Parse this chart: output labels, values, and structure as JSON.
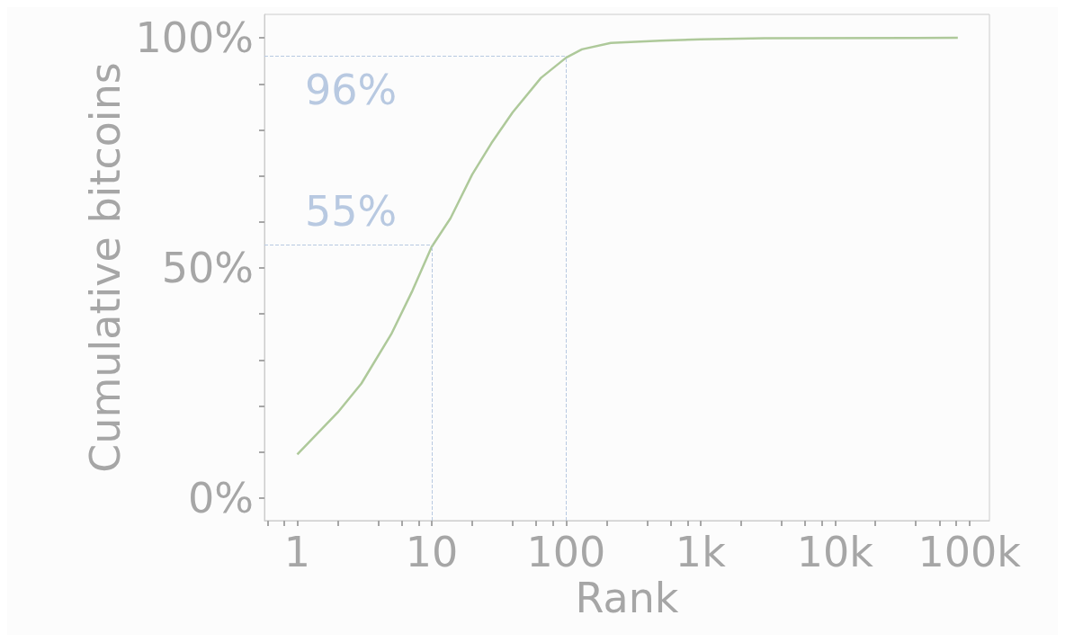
{
  "chart_data": {
    "type": "line",
    "xlabel": "Rank",
    "ylabel": "Cumulative bitcoins",
    "log": "x",
    "x": [
      1,
      2,
      3,
      5,
      7.2,
      10,
      13.8,
      20,
      27.8,
      40,
      65,
      100,
      131,
      215,
      500,
      1000,
      3000,
      82000
    ],
    "series": [
      {
        "color": "#aec99a",
        "values": [
          9.5,
          18.6,
          24.9,
          35.6,
          45.1,
          54.6,
          60.8,
          70.3,
          77.1,
          83.8,
          91.3,
          95.7,
          97.5,
          98.9,
          99.4,
          99.7,
          99.9,
          100
        ]
      }
    ],
    "xlim": [
      0.57,
      141000
    ],
    "xticks": [
      {
        "value": 0.6,
        "label": null
      },
      {
        "value": 0.8,
        "label": null
      },
      1,
      {
        "value": 2,
        "label": null
      },
      {
        "value": 4,
        "label": null
      },
      {
        "value": 6,
        "label": null
      },
      {
        "value": 8,
        "label": null
      },
      10,
      {
        "value": 20,
        "label": null
      },
      {
        "value": 40,
        "label": null
      },
      {
        "value": 60,
        "label": null
      },
      {
        "value": 80,
        "label": null
      },
      100,
      {
        "value": 200,
        "label": null
      },
      {
        "value": 400,
        "label": null
      },
      {
        "value": 600,
        "label": null
      },
      {
        "value": 800,
        "label": null
      },
      {
        "value": 1000,
        "label": "1k"
      },
      {
        "value": 2000,
        "label": null
      },
      {
        "value": 4000,
        "label": null
      },
      {
        "value": 6000,
        "label": null
      },
      {
        "value": 8000,
        "label": null
      },
      {
        "value": 10000,
        "label": "10k"
      },
      {
        "value": 20000,
        "label": null
      },
      {
        "value": 40000,
        "label": null
      },
      {
        "value": 60000,
        "label": null
      },
      {
        "value": 80000,
        "label": null
      },
      {
        "value": 100000,
        "label": "100k"
      }
    ],
    "ylim": [
      -4.9,
      105.1
    ],
    "yticks": [
      {
        "value": 0,
        "label": "0%"
      },
      {
        "value": 10,
        "label": null
      },
      {
        "value": 20,
        "label": null
      },
      {
        "value": 30,
        "label": null
      },
      {
        "value": 40,
        "label": null
      },
      {
        "value": 50,
        "label": "50%"
      },
      {
        "value": 60,
        "label": null
      },
      {
        "value": 70,
        "label": null
      },
      {
        "value": 80,
        "label": null
      },
      {
        "value": 90,
        "label": null
      },
      {
        "value": 100,
        "label": "100%"
      }
    ],
    "ref_lines": [
      {
        "axis": "y",
        "value": 96,
        "label": "96%",
        "color": "#b8c9e1",
        "line_style": "dashed"
      },
      {
        "axis": "x",
        "value": 100,
        "color": "#b8c9e1",
        "line_style": "dashed"
      },
      {
        "axis": "y",
        "value": 55,
        "label": "55%",
        "color": "#b8c9e1",
        "line_style": "dashed"
      },
      {
        "axis": "x",
        "value": 10,
        "color": "#b8c9e1",
        "line_style": "dashed"
      }
    ],
    "grid": false,
    "marker": "none",
    "line_style": "solid"
  }
}
